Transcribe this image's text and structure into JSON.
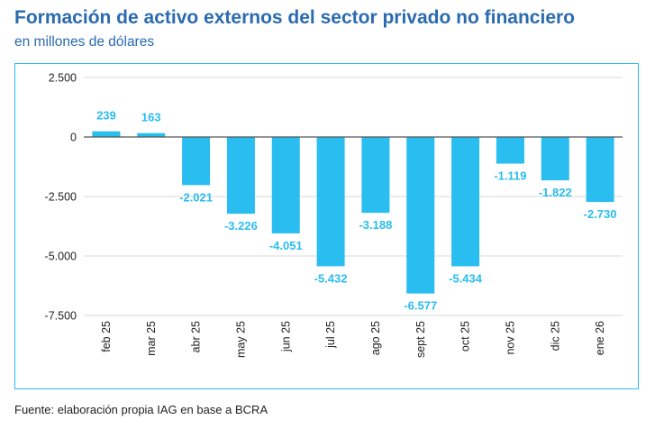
{
  "header": {
    "title": "Formación de activo externos del sector privado no financiero",
    "subtitle": "en millones de dólares"
  },
  "footer": {
    "source": "Fuente: elaboración propia IAG en base a BCRA"
  },
  "colors": {
    "bar": "#29bdf0",
    "label": "#29bdf0",
    "title": "#2a6bb0",
    "grid": "#d9d9d9",
    "zero_line": "#555555",
    "frame": "#29bdf0"
  },
  "chart_data": {
    "type": "bar",
    "title": "Formación de activo externos del sector privado no financiero",
    "subtitle": "en millones de dólares",
    "xlabel": "",
    "ylabel": "",
    "categories": [
      "feb 25",
      "mar 25",
      "abr 25",
      "may 25",
      "jun 25",
      "jul 25",
      "ago 25",
      "sept 25",
      "oct 25",
      "nov 25",
      "dic 25",
      "ene 26"
    ],
    "values": [
      239,
      163,
      -2021,
      -3226,
      -4051,
      -5432,
      -3188,
      -6577,
      -5434,
      -1119,
      -1822,
      -2730
    ],
    "value_labels": [
      "239",
      "163",
      "-2.021",
      "-3.226",
      "-4.051",
      "-5.432",
      "-3.188",
      "-6.577",
      "-5.434",
      "-1.119",
      "-1.822",
      "-2.730"
    ],
    "ylim": [
      -7500,
      2500
    ],
    "yticks": [
      2500,
      0,
      -2500,
      -5000,
      -7500
    ],
    "ytick_labels": [
      "2.500",
      "0",
      "-2.500",
      "-5.000",
      "-7.500"
    ],
    "grid": true,
    "legend": "none"
  }
}
